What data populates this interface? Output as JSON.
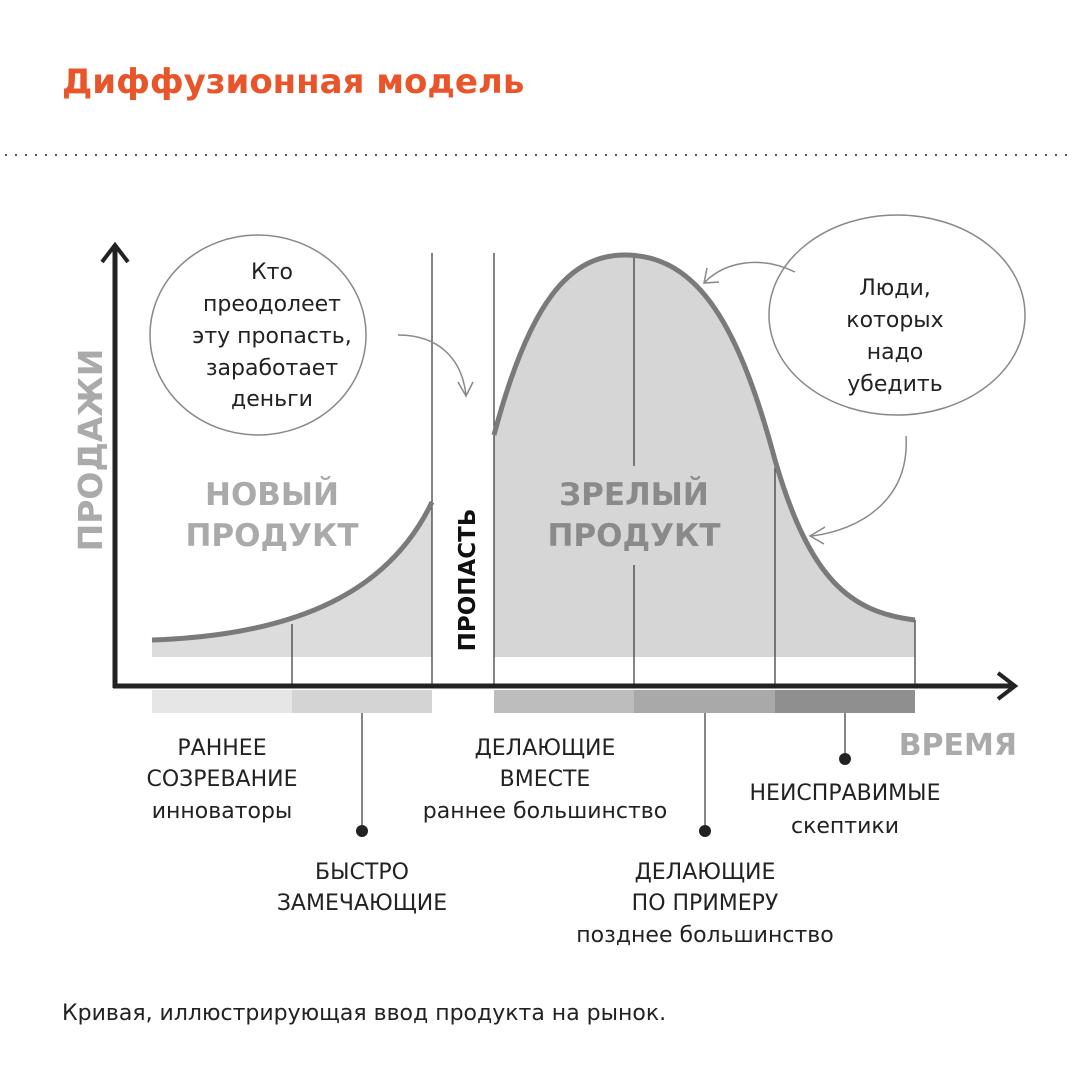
{
  "title": "Диффузионная модель",
  "accent_color": "#e8552a",
  "axes": {
    "y_label": "ПРОДАЖИ",
    "x_label": "ВРЕМЯ"
  },
  "zones": {
    "new_product": [
      "НОВЫЙ",
      "ПРОДУКТ"
    ],
    "chasm": "ПРОПАСТЬ",
    "mature_product": [
      "ЗРЕЛЫЙ",
      "ПРОДУКТ"
    ]
  },
  "bubbles": {
    "left": [
      "Кто",
      "преодолеет",
      "эту пропасть,",
      "заработает",
      "деньги"
    ],
    "right": [
      "Люди,",
      "которых",
      "надо",
      "убедить"
    ]
  },
  "segments": [
    {
      "lines": [
        "РАННЕЕ",
        "СОЗРЕВАНИЕ"
      ],
      "sub": "инноваторы",
      "color": "#e6e6e6"
    },
    {
      "lines": [
        "БЫСТРО",
        "ЗАМЕЧАЮЩИЕ"
      ],
      "sub": "",
      "color": "#d4d4d4"
    },
    {
      "lines": [
        "ДЕЛАЮЩИЕ",
        "ВМЕСТЕ"
      ],
      "sub": "раннее большинство",
      "color": "#bdbdbd"
    },
    {
      "lines": [
        "ДЕЛАЮЩИЕ",
        "ПО ПРИМЕРУ"
      ],
      "sub": "позднее большинство",
      "color": "#a9a9a9"
    },
    {
      "lines": [
        "НЕИСПРАВИМЫЕ"
      ],
      "sub": "скептики",
      "color": "#8f8f8f"
    }
  ],
  "caption": "Кривая, иллюстрирующая ввод продукта на рынок."
}
